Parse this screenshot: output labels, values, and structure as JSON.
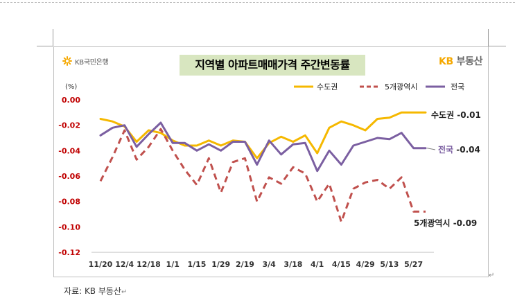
{
  "header": {
    "bank_brand": "KB국민은행",
    "title": "지역별 아파트매매가격 주간변동률",
    "land_brand_kb": "KB",
    "land_brand_name": "부동산"
  },
  "footer": {
    "source": "자료: KB 부동산",
    "paragraph_mark": "↵"
  },
  "colors": {
    "capital": "#f5b800",
    "metro": "#c0504d",
    "national": "#7b5fa1",
    "axis_text": "#c00000",
    "title_bg": "#d8e6c0"
  },
  "chart_data": {
    "type": "line",
    "title": "지역별 아파트매매가격 주간변동률",
    "unit_label": "(%)",
    "ylim": [
      -0.12,
      0.0
    ],
    "yticks": [
      0.0,
      -0.02,
      -0.04,
      -0.06,
      -0.08,
      -0.1,
      -0.12
    ],
    "ytick_labels": [
      "0.00",
      "-0.02",
      "-0.04",
      "-0.06",
      "-0.08",
      "-0.10",
      "-0.12"
    ],
    "x_count": 28,
    "x_tick_labels": [
      {
        "i": 0,
        "label": "11/20"
      },
      {
        "i": 2,
        "label": "12/4"
      },
      {
        "i": 4,
        "label": "12/18"
      },
      {
        "i": 6,
        "label": "1/1"
      },
      {
        "i": 8,
        "label": "1/15"
      },
      {
        "i": 10,
        "label": "1/29"
      },
      {
        "i": 12,
        "label": "2/19"
      },
      {
        "i": 14,
        "label": "3/4"
      },
      {
        "i": 16,
        "label": "3/18"
      },
      {
        "i": 18,
        "label": "4/1"
      },
      {
        "i": 20,
        "label": "4/15"
      },
      {
        "i": 22,
        "label": "4/29"
      },
      {
        "i": 24,
        "label": "5/13"
      },
      {
        "i": 26,
        "label": "5/27"
      }
    ],
    "legend": {
      "position": "top-right"
    },
    "series": [
      {
        "name": "수도권",
        "color": "#f5b800",
        "dash": false,
        "values": [
          -0.015,
          -0.017,
          -0.021,
          -0.033,
          -0.024,
          -0.026,
          -0.032,
          -0.036,
          -0.036,
          -0.032,
          -0.036,
          -0.032,
          -0.033,
          -0.046,
          -0.034,
          -0.029,
          -0.033,
          -0.028,
          -0.042,
          -0.022,
          -0.017,
          -0.02,
          -0.024,
          -0.015,
          -0.014,
          -0.01,
          -0.01,
          -0.01
        ],
        "end_label": "수도권",
        "end_value": "-0.01"
      },
      {
        "name": "5개광역시",
        "color": "#c0504d",
        "dash": true,
        "values": [
          -0.064,
          -0.045,
          -0.024,
          -0.047,
          -0.037,
          -0.023,
          -0.04,
          -0.055,
          -0.067,
          -0.046,
          -0.073,
          -0.049,
          -0.046,
          -0.08,
          -0.061,
          -0.066,
          -0.053,
          -0.058,
          -0.08,
          -0.066,
          -0.096,
          -0.07,
          -0.065,
          -0.063,
          -0.07,
          -0.061,
          -0.088,
          -0.088
        ],
        "end_label": "5개광역시",
        "end_value": "-0.09"
      },
      {
        "name": "전국",
        "color": "#7b5fa1",
        "dash": false,
        "values": [
          -0.028,
          -0.022,
          -0.02,
          -0.037,
          -0.027,
          -0.018,
          -0.034,
          -0.034,
          -0.04,
          -0.035,
          -0.04,
          -0.033,
          -0.033,
          -0.051,
          -0.032,
          -0.043,
          -0.035,
          -0.034,
          -0.056,
          -0.04,
          -0.051,
          -0.036,
          -0.033,
          -0.03,
          -0.031,
          -0.026,
          -0.038,
          -0.038
        ],
        "end_label": "전국",
        "end_value": "-0.04"
      }
    ]
  }
}
